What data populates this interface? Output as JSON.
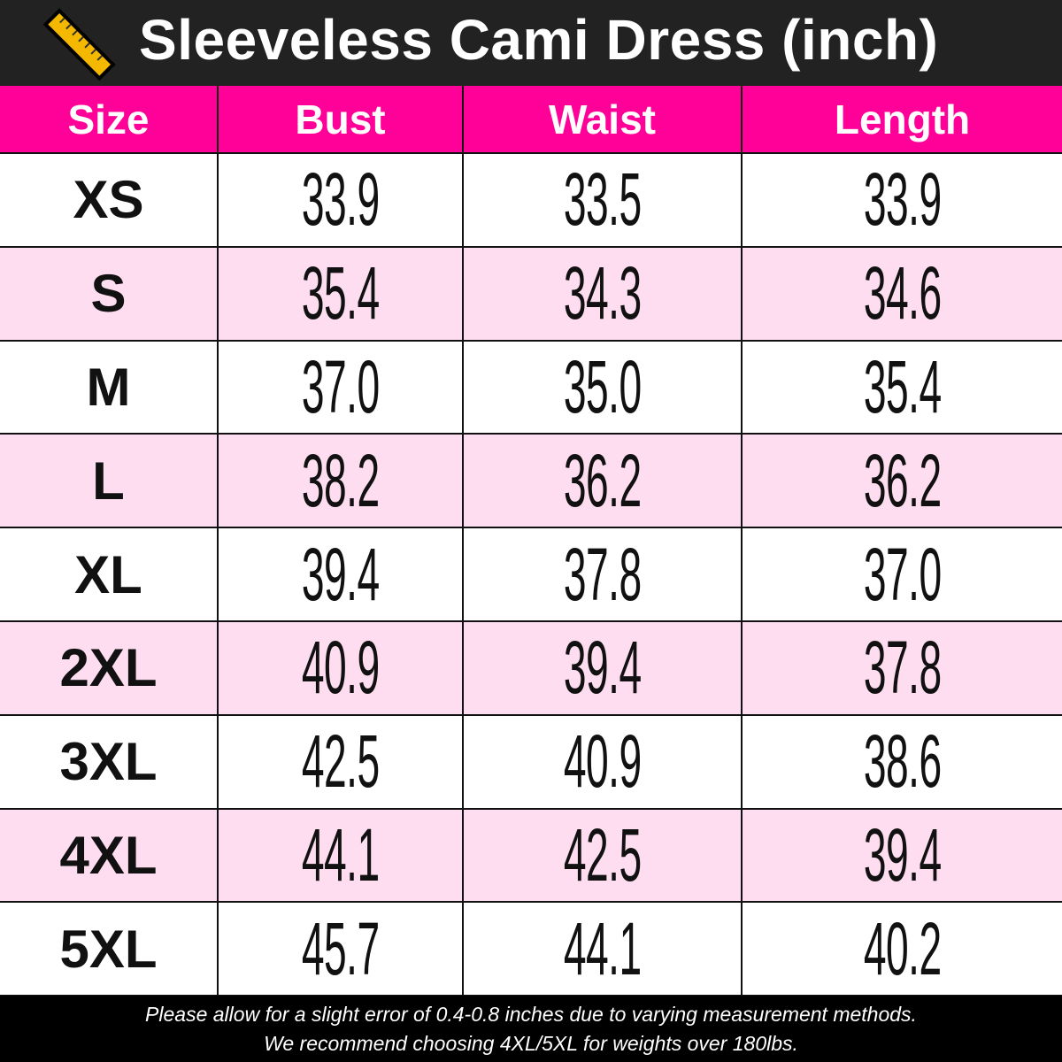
{
  "title": "Sleeveless Cami Dress (inch)",
  "icon": "ruler-icon",
  "colors": {
    "header": "#FF0099",
    "alt_row": "#FFDDF0",
    "title_bg": "#222222"
  },
  "headers": [
    "Size",
    "Bust",
    "Waist",
    "Length"
  ],
  "rows": [
    [
      "XS",
      "33.9",
      "33.5",
      "33.9"
    ],
    [
      "S",
      "35.4",
      "34.3",
      "34.6"
    ],
    [
      "M",
      "37.0",
      "35.0",
      "35.4"
    ],
    [
      "L",
      "38.2",
      "36.2",
      "36.2"
    ],
    [
      "XL",
      "39.4",
      "37.8",
      "37.0"
    ],
    [
      "2XL",
      "40.9",
      "39.4",
      "37.8"
    ],
    [
      "3XL",
      "42.5",
      "40.9",
      "38.6"
    ],
    [
      "4XL",
      "44.1",
      "42.5",
      "39.4"
    ],
    [
      "5XL",
      "45.7",
      "44.1",
      "40.2"
    ]
  ],
  "footer": [
    "Please allow for a slight error of 0.4-0.8 inches due to varying measurement methods.",
    "We recommend choosing 4XL/5XL for weights over 180lbs."
  ]
}
